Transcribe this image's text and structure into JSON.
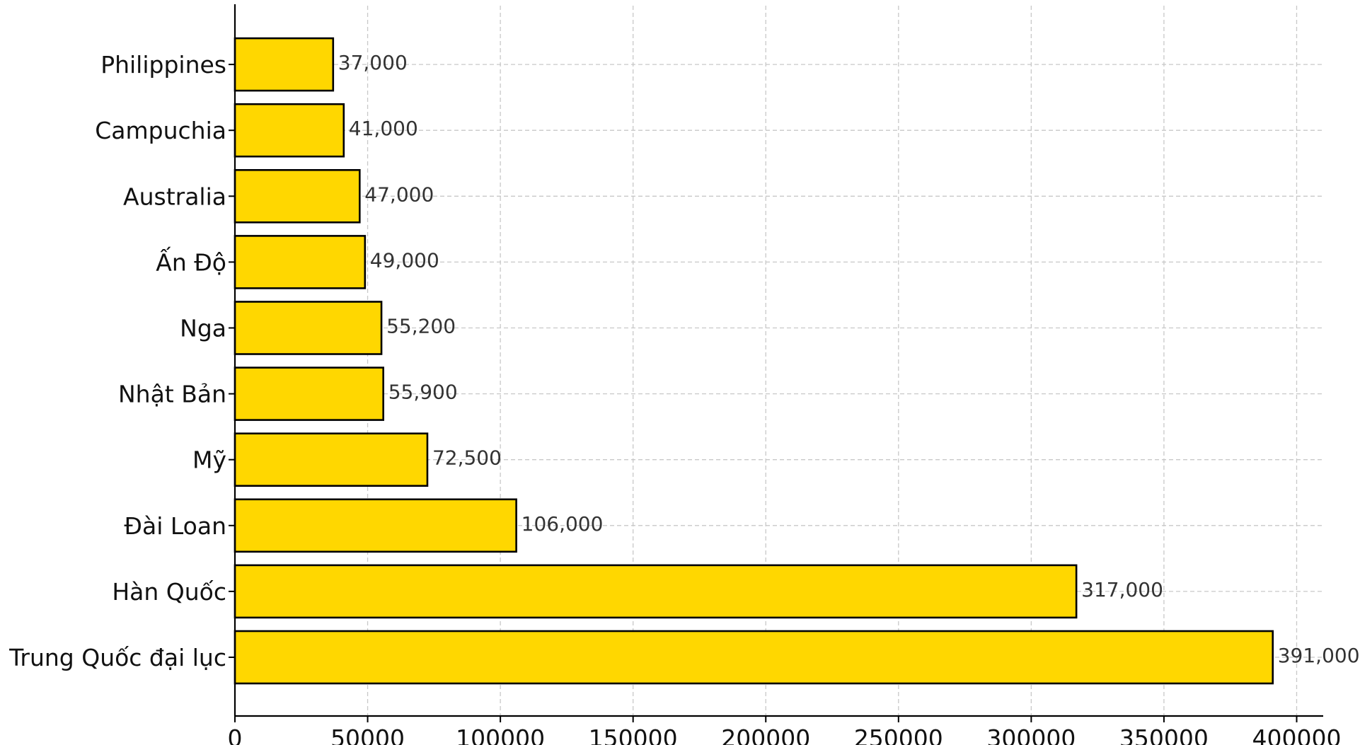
{
  "chart_data": {
    "type": "bar",
    "orientation": "horizontal",
    "title": "",
    "xlabel": "",
    "ylabel": "",
    "xlim": [
      0,
      410000
    ],
    "x_ticks": [
      0,
      50000,
      100000,
      150000,
      200000,
      250000,
      300000,
      350000,
      400000
    ],
    "x_tick_labels": [
      "0",
      "50000",
      "100000",
      "150000",
      "200000",
      "250000",
      "300000",
      "350000",
      "400000"
    ],
    "grid": true,
    "legend": "none",
    "bar_color": "#FFD700",
    "bar_edge_color": "#000000",
    "categories": [
      "Trung Quốc đại lục",
      "Hàn Quốc",
      "Đài Loan",
      "Mỹ",
      "Nhật Bản",
      "Nga",
      "Ấn Độ",
      "Australia",
      "Campuchia",
      "Philippines"
    ],
    "values": [
      391000,
      317000,
      106000,
      72500,
      55900,
      55200,
      49000,
      47000,
      41000,
      37000
    ],
    "value_labels": [
      "391,000",
      "317,000",
      "106,000",
      "72,500",
      "55,900",
      "55,200",
      "49,000",
      "47,000",
      "41,000",
      "37,000"
    ]
  }
}
